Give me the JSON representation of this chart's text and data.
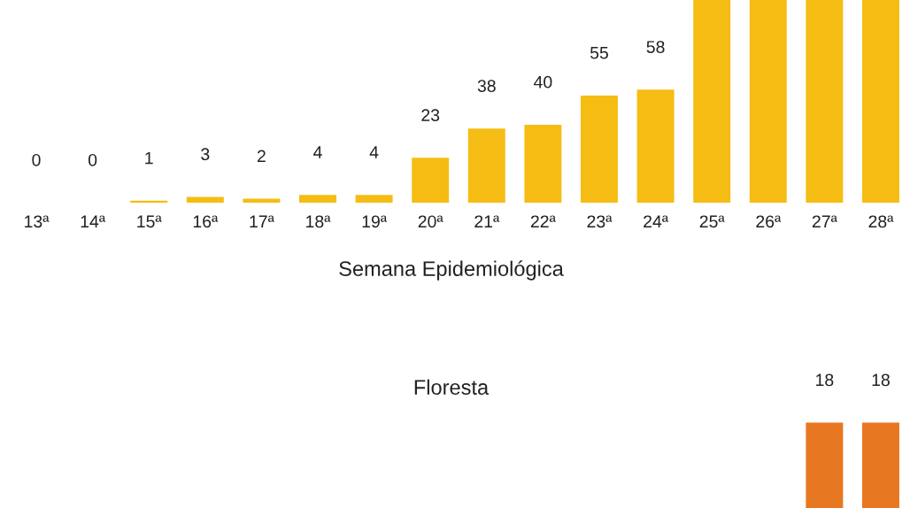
{
  "chart_data": [
    {
      "type": "bar",
      "xlabel": "Semana Epidemiológica",
      "categories": [
        "13ª",
        "14ª",
        "15ª",
        "16ª",
        "17ª",
        "18ª",
        "19ª",
        "20ª",
        "21ª",
        "22ª",
        "23ª",
        "24ª",
        "25ª",
        "26ª",
        "27ª",
        "28ª"
      ],
      "values": [
        0,
        0,
        1,
        3,
        2,
        4,
        4,
        23,
        38,
        40,
        55,
        58,
        104,
        104,
        104,
        104
      ],
      "value_labels": [
        "0",
        "0",
        "1",
        "3",
        "2",
        "4",
        "4",
        "23",
        "38",
        "40",
        "55",
        "58",
        null,
        null,
        null,
        null
      ],
      "color": "#f5bd14",
      "ylim": [
        0,
        104
      ],
      "tick_labels": "x",
      "grid": false,
      "legend": false
    },
    {
      "type": "bar",
      "title": "Floresta",
      "categories": [
        null,
        null,
        null,
        null,
        null,
        null,
        null,
        null,
        null,
        null,
        null,
        null,
        null,
        null,
        null,
        null
      ],
      "values": [
        null,
        null,
        null,
        null,
        null,
        null,
        null,
        null,
        null,
        null,
        null,
        null,
        null,
        null,
        18,
        18
      ],
      "data_labels": true,
      "color": "#e87722",
      "tick_labels": false,
      "grid": false,
      "legend": false
    }
  ]
}
